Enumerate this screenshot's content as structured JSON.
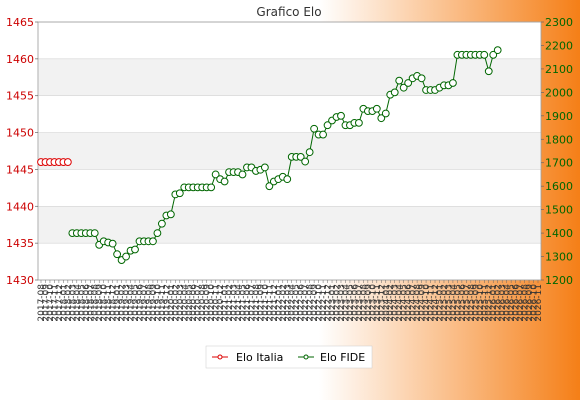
{
  "chart_data": {
    "type": "line",
    "title": "Grafico Elo",
    "xlabel": "",
    "ylabel_left": "",
    "ylabel_right": "",
    "ylim_left": [
      1430,
      1465
    ],
    "yticks_left": [
      1430,
      1435,
      1440,
      1445,
      1450,
      1455,
      1460,
      1465
    ],
    "ylim_right": [
      1200,
      2300
    ],
    "yticks_right": [
      1200,
      1300,
      1400,
      1500,
      1600,
      1700,
      1800,
      1900,
      2000,
      2100,
      2200,
      2300
    ],
    "grid": true,
    "legend_position": "bottom",
    "x_labels": [
      "2017-08",
      "2017-09",
      "2017-10",
      "2017-11",
      "2017-12",
      "2018-01",
      "2018-02",
      "2018-03",
      "2018-04",
      "2018-05",
      "2018-06",
      "2018-07",
      "2018-08",
      "2018-09",
      "2018-10",
      "2018-11",
      "2018-12",
      "2019-01",
      "2019-02",
      "2019-03",
      "2019-04",
      "2019-05",
      "2019-06",
      "2019-07",
      "2019-08",
      "2019-09",
      "2019-10",
      "2019-11",
      "2019-12",
      "2020-01",
      "2020-02",
      "2020-03",
      "2020-04",
      "2020-05",
      "2020-06",
      "2020-07",
      "2020-08",
      "2020-09",
      "2020-10",
      "2020-11",
      "2020-12",
      "2021-01",
      "2021-02",
      "2021-03",
      "2021-04",
      "2021-05",
      "2021-06",
      "2021-07",
      "2021-08",
      "2021-09",
      "2021-10",
      "2021-11",
      "2021-12",
      "2022-01",
      "2022-02",
      "2022-03",
      "2022-04",
      "2022-05",
      "2022-06",
      "2022-07",
      "2022-08",
      "2022-09",
      "2022-10",
      "2022-11",
      "2022-12",
      "2023-01",
      "2023-02",
      "2023-03",
      "2023-04",
      "2023-05",
      "2023-06",
      "2023-07",
      "2023-08",
      "2023-09",
      "2023-10",
      "2023-11",
      "2023-12",
      "2024-01",
      "2024-02",
      "2024-03",
      "2024-04",
      "2024-05",
      "2024-06",
      "2024-07",
      "2024-08",
      "2024-09",
      "2024-10",
      "2024-11",
      "2024-12",
      "2025-01",
      "2025-02",
      "2025-03",
      "2025-04",
      "2025-05",
      "2025-06",
      "2025-07",
      "2025-08",
      "2025-09",
      "2025-10",
      "2025-11",
      "2025-12",
      "2026-01",
      "2026-02",
      "2026-03",
      "2026-04",
      "2026-05",
      "2026-06",
      "2026-07",
      "2026-08",
      "2026-09",
      "2026-10",
      "2026-11"
    ],
    "series": [
      {
        "name": "Elo Italia",
        "axis": "left",
        "color": "#dd0000",
        "marker": "circle",
        "x_start_index": 0,
        "values": [
          1446,
          1446,
          1446,
          1446,
          1446,
          1446,
          1446
        ]
      },
      {
        "name": "Elo FIDE",
        "axis": "right",
        "color": "#006600",
        "marker": "circle",
        "x_start_index": 7,
        "values": [
          1400,
          1400,
          1400,
          1400,
          1400,
          1400,
          1350,
          1365,
          1360,
          1355,
          1310,
          1285,
          1300,
          1325,
          1330,
          1365,
          1365,
          1365,
          1365,
          1400,
          1440,
          1475,
          1480,
          1565,
          1570,
          1595,
          1595,
          1595,
          1595,
          1595,
          1595,
          1595,
          1650,
          1630,
          1620,
          1660,
          1660,
          1660,
          1650,
          1680,
          1680,
          1665,
          1670,
          1680,
          1600,
          1620,
          1630,
          1640,
          1630,
          1725,
          1725,
          1725,
          1705,
          1745,
          1845,
          1820,
          1820,
          1860,
          1880,
          1895,
          1900,
          1860,
          1860,
          1870,
          1870,
          1930,
          1920,
          1920,
          1930,
          1890,
          1910,
          1990,
          2000,
          2050,
          2020,
          2040,
          2060,
          2070,
          2060,
          2010,
          2010,
          2010,
          2020,
          2030,
          2030,
          2040,
          2160,
          2160,
          2160,
          2160,
          2160,
          2160,
          2160,
          2090,
          2160,
          2180
        ]
      }
    ]
  },
  "legend": {
    "items": [
      "Elo Italia",
      "Elo FIDE"
    ]
  },
  "colors": {
    "gradient_start": "#ffffff",
    "gradient_end": "#f57f17",
    "plot_bg": "#ffffff",
    "band_bg": "#f2f2f2",
    "left_axis_text": "#cc0000",
    "right_axis_text": "#006600"
  }
}
